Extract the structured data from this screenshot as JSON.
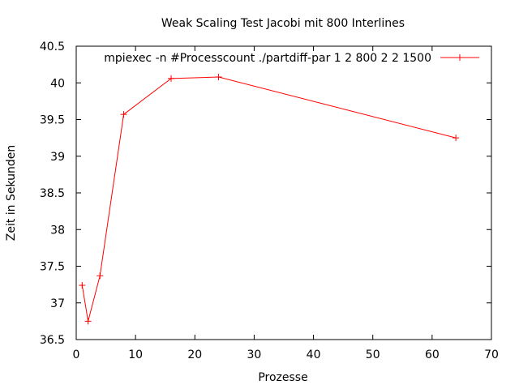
{
  "chart_data": {
    "type": "line",
    "title": "Weak Scaling Test Jacobi mit 800 Interlines",
    "xlabel": "Prozesse",
    "ylabel": "Zeit in Sekunden",
    "xlim": [
      0,
      70
    ],
    "ylim": [
      36.5,
      40.5
    ],
    "xticks": [
      0,
      10,
      20,
      30,
      40,
      50,
      60,
      70
    ],
    "yticks": [
      36.5,
      37,
      37.5,
      38,
      38.5,
      39,
      39.5,
      40,
      40.5
    ],
    "grid": false,
    "legend_position": "top-right",
    "series": [
      {
        "name": "mpiexec -n #Processcount ./partdiff-par 1 2 800 2 2 1500",
        "color": "#ff0000",
        "marker": "plus",
        "x": [
          1,
          2,
          4,
          8,
          16,
          24,
          64
        ],
        "y": [
          37.24,
          36.75,
          37.37,
          39.57,
          40.06,
          40.08,
          39.25
        ]
      }
    ]
  }
}
